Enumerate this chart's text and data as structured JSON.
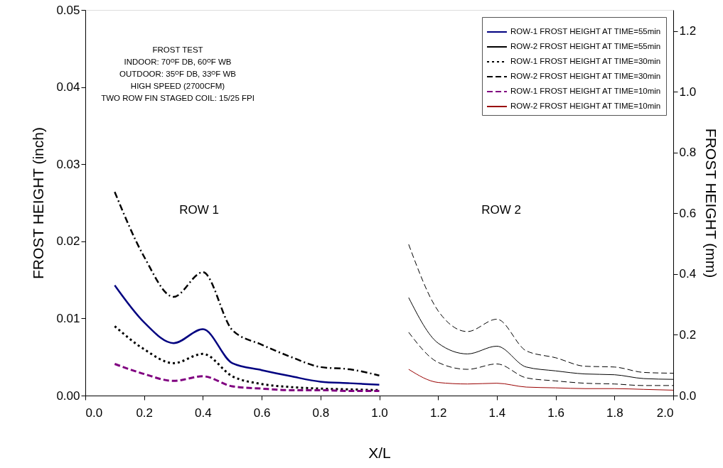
{
  "chart_data": {
    "type": "line",
    "xlabel": "X/L",
    "ylabel": "FROST HEIGHT (inch)",
    "y2label": "FROST HEIGHT (mm)",
    "xlim": [
      0,
      2
    ],
    "ylim": [
      0,
      0.05
    ],
    "y2lim": [
      0,
      1.27
    ],
    "xticks": [
      {
        "value": 0,
        "label": "0.0"
      },
      {
        "value": 0.2,
        "label": "0.2"
      },
      {
        "value": 0.4,
        "label": "0.4"
      },
      {
        "value": 0.6,
        "label": "0.6"
      },
      {
        "value": 0.8,
        "label": "0.8"
      },
      {
        "value": 1,
        "label": "1.0"
      },
      {
        "value": 1.2,
        "label": "1.2"
      },
      {
        "value": 1.4,
        "label": "1.4"
      },
      {
        "value": 1.6,
        "label": "1.6"
      },
      {
        "value": 1.8,
        "label": "1.8"
      },
      {
        "value": 2,
        "label": "2.0"
      }
    ],
    "yticks": [
      {
        "value": 0,
        "label": "0.00"
      },
      {
        "value": 0.01,
        "label": "0.01"
      },
      {
        "value": 0.02,
        "label": "0.02"
      },
      {
        "value": 0.03,
        "label": "0.03"
      },
      {
        "value": 0.04,
        "label": "0.04"
      },
      {
        "value": 0.05,
        "label": "0.05"
      }
    ],
    "y2ticks": [
      {
        "value": 0,
        "label": "0.0"
      },
      {
        "value": 0.2,
        "label": "0.2"
      },
      {
        "value": 0.4,
        "label": "0.4"
      },
      {
        "value": 0.6,
        "label": "0.6"
      },
      {
        "value": 0.8,
        "label": "0.8"
      },
      {
        "value": 1,
        "label": "1.0"
      },
      {
        "value": 1.2,
        "label": "1.2"
      }
    ],
    "legend": "top right",
    "marker": "none",
    "series": [
      {
        "name": "ROW-1 FROST HEIGHT AT TIME=55min",
        "color": "#000080",
        "line_style": "solid",
        "x": [
          0.1,
          0.2,
          0.3,
          0.4,
          0.5,
          0.6,
          0.7,
          0.8,
          0.9,
          1.0
        ],
        "values": [
          0.0143,
          0.0095,
          0.0068,
          0.0086,
          0.0042,
          0.0033,
          0.0025,
          0.0018,
          0.0016,
          0.0014
        ]
      },
      {
        "name": "ROW-2 FROST HEIGHT AT TIME=55min",
        "color": "#000000",
        "line_style": "solid",
        "x": [
          1.1,
          1.2,
          1.3,
          1.4,
          1.5,
          1.6,
          1.7,
          1.8,
          1.9,
          2.0
        ],
        "values": [
          0.0127,
          0.0068,
          0.0054,
          0.0064,
          0.0037,
          0.0032,
          0.0028,
          0.0027,
          0.0022,
          0.0021
        ]
      },
      {
        "name": "ROW-1 FROST HEIGHT AT TIME=30min",
        "color": "#000000",
        "line_style": "dotted",
        "x": [
          0.1,
          0.2,
          0.3,
          0.4,
          0.5,
          0.6,
          0.7,
          0.8,
          0.9,
          1.0
        ],
        "values": [
          0.009,
          0.006,
          0.0042,
          0.0054,
          0.0025,
          0.0015,
          0.0011,
          0.0009,
          0.0008,
          0.0007
        ]
      },
      {
        "name": "ROW-2 FROST HEIGHT AT TIME=30min",
        "color": "#000000",
        "line_style": "dashed",
        "x": [
          1.1,
          1.2,
          1.3,
          1.4,
          1.5,
          1.6,
          1.7,
          1.8,
          1.9,
          2.0
        ],
        "values": [
          0.0082,
          0.0043,
          0.0034,
          0.0041,
          0.0023,
          0.0019,
          0.0016,
          0.0015,
          0.0013,
          0.0013
        ]
      },
      {
        "name": "ROW-1 FROST HEIGHT AT TIME=10min",
        "color": "#800080",
        "line_style": "dashed",
        "x": [
          0.1,
          0.2,
          0.3,
          0.4,
          0.5,
          0.6,
          0.7,
          0.8,
          0.9,
          1.0
        ],
        "values": [
          0.0041,
          0.0028,
          0.0019,
          0.0025,
          0.0012,
          0.0009,
          0.0007,
          0.0007,
          0.0006,
          0.0006
        ]
      },
      {
        "name": "ROW-2 FROST HEIGHT AT TIME=10min",
        "color": "#990000",
        "line_style": "solid",
        "x": [
          1.1,
          1.2,
          1.3,
          1.4,
          1.5,
          1.6,
          1.7,
          1.8,
          1.9,
          2.0
        ],
        "values": [
          0.0034,
          0.0017,
          0.0015,
          0.0016,
          0.0011,
          0.001,
          0.0009,
          0.0009,
          0.0008,
          0.0007
        ]
      },
      {
        "color": "#000000",
        "line_style": "dashdot",
        "x": [
          0.1,
          0.2,
          0.3,
          0.4,
          0.5,
          0.6,
          0.7,
          0.8,
          0.9,
          1.0
        ],
        "values": [
          0.0264,
          0.018,
          0.0128,
          0.016,
          0.0085,
          0.0066,
          0.005,
          0.0037,
          0.0034,
          0.0026
        ]
      },
      {
        "color": "#000000",
        "line_style": "dashed",
        "x": [
          1.1,
          1.2,
          1.3,
          1.4,
          1.5,
          1.6,
          1.7,
          1.8,
          1.9,
          2.0
        ],
        "values": [
          0.0196,
          0.011,
          0.0083,
          0.0099,
          0.0058,
          0.0049,
          0.0038,
          0.0037,
          0.003,
          0.0029
        ]
      }
    ],
    "annotations": [
      "FROST TEST",
      "INDOOR:      70ᴼF DB, 60ᴼF WB",
      "OUTDOOR:   35ᴼF DB, 33ᴼF WB",
      "HIGH SPEED (2700CFM)",
      "TWO ROW  FIN  STAGED  COIL:  15/25 FPI",
      "ROW 1",
      "ROW 2"
    ]
  }
}
